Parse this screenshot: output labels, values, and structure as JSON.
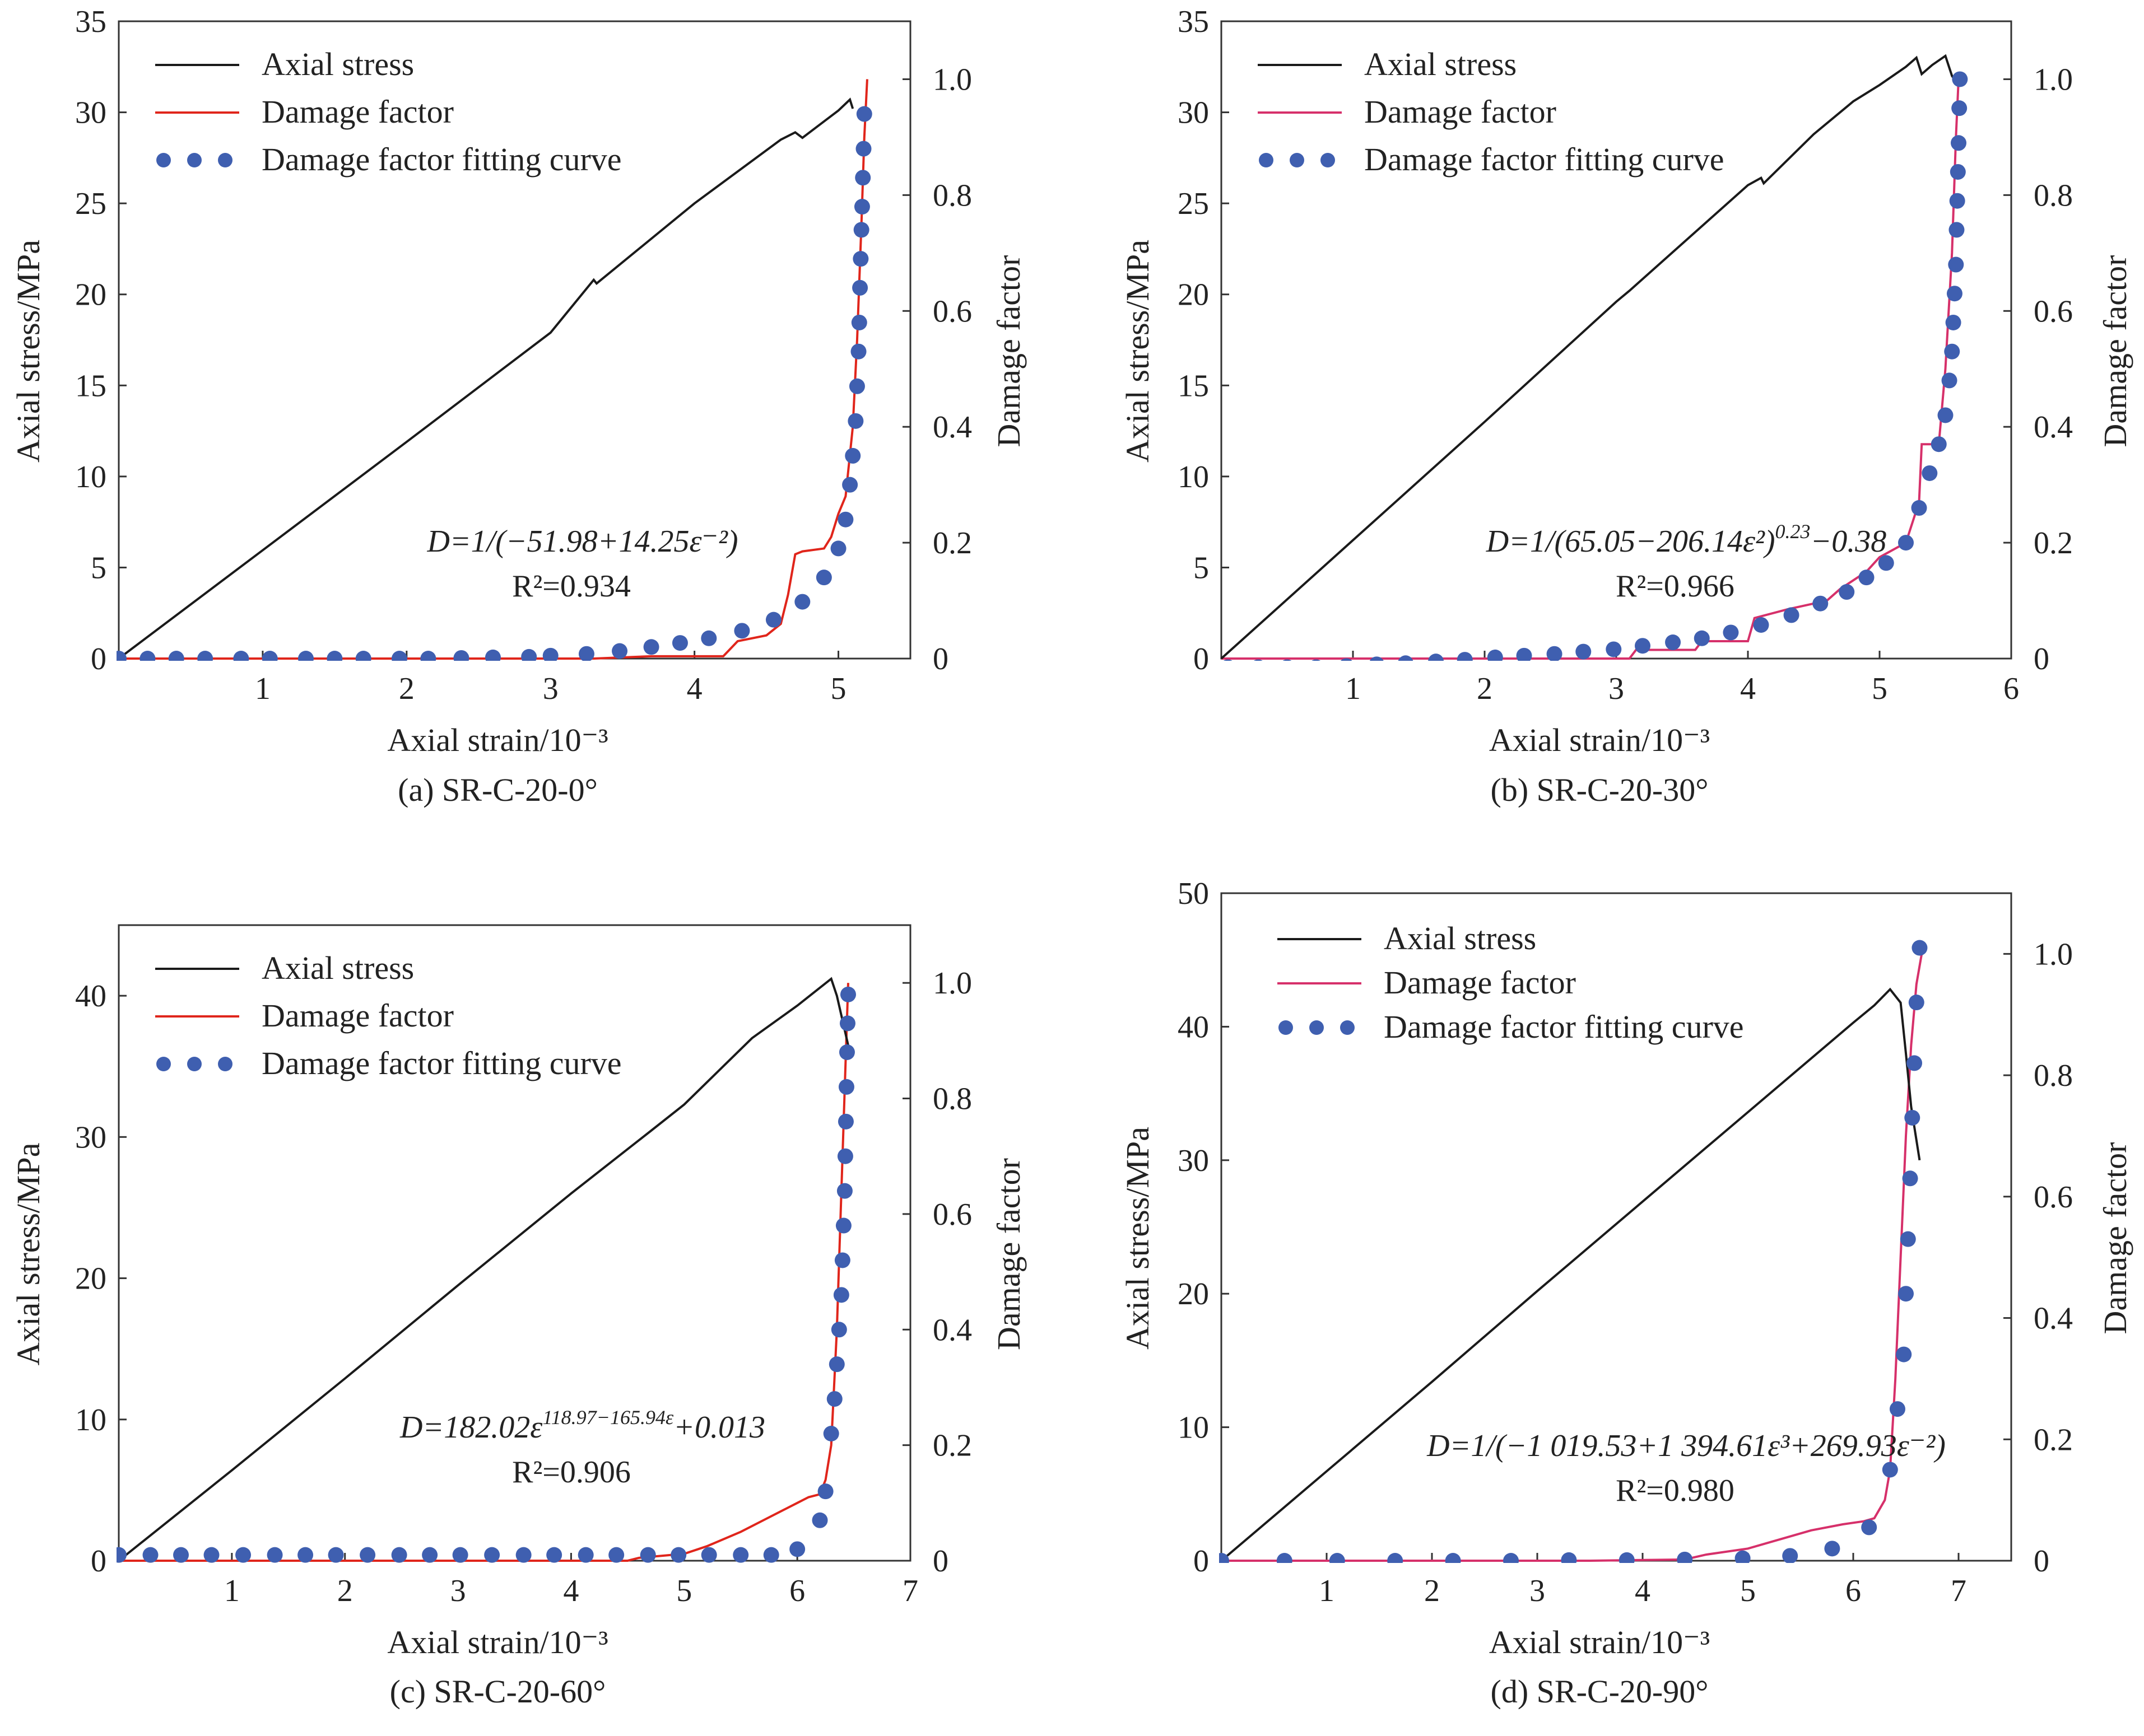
{
  "colors": {
    "axial_stress": "#1a1a1a",
    "damage_factor_red": "#e0251b",
    "damage_factor_pink": "#d6306a",
    "fitting_points": "#3f5fb0",
    "axes": "#333333"
  },
  "chart_data": [
    {
      "id": "a",
      "type": "line",
      "caption": "(a) SR-C-20-0°",
      "xlabel": "Axial strain/10⁻³",
      "ylabel_left": "Axial stress/MPa",
      "ylabel_right": "Damage factor",
      "xlim": [
        0,
        5.5
      ],
      "ylim_left": [
        0,
        35
      ],
      "ylim_right": [
        0,
        1.1
      ],
      "x_ticks": [
        "1",
        "2",
        "3",
        "4",
        "5"
      ],
      "x_tick_values": [
        1,
        2,
        3,
        4,
        5
      ],
      "y_left_ticks": [
        "0",
        "5",
        "10",
        "15",
        "20",
        "25",
        "30",
        "35"
      ],
      "y_left_tick_values": [
        0,
        5,
        10,
        15,
        20,
        25,
        30,
        35
      ],
      "y_right_ticks": [
        "0",
        "0.2",
        "0.4",
        "0.6",
        "0.8",
        "1.0"
      ],
      "y_right_tick_values": [
        0,
        0.2,
        0.4,
        0.6,
        0.8,
        1.0
      ],
      "legend": [
        "Axial stress",
        "Damage factor",
        "Damage factor fitting curve"
      ],
      "legend_position": "top-left",
      "equation": "D=1/(−51.98+14.25ε⁻²)",
      "r2": "R²=0.934",
      "damage_color_key": "damage_factor_red",
      "stress": {
        "x": [
          0,
          1,
          2,
          3,
          3.3,
          3.32,
          4,
          4.6,
          4.7,
          4.75,
          4.9,
          5.0,
          5.08,
          5.1
        ],
        "y": [
          0,
          5.95,
          11.9,
          17.9,
          20.8,
          20.6,
          25.0,
          28.5,
          28.9,
          28.6,
          29.5,
          30.1,
          30.7,
          30.2
        ]
      },
      "damage": {
        "x": [
          0,
          3.3,
          3.7,
          4.2,
          4.3,
          4.5,
          4.6,
          4.65,
          4.7,
          4.75,
          4.9,
          4.95,
          5.0,
          5.05,
          5.1,
          5.13,
          5.16,
          5.18,
          5.2
        ],
        "y": [
          0,
          0,
          0.004,
          0.004,
          0.03,
          0.04,
          0.06,
          0.11,
          0.18,
          0.185,
          0.19,
          0.21,
          0.25,
          0.28,
          0.4,
          0.55,
          0.75,
          0.9,
          1.0
        ]
      },
      "fit": {
        "x": [
          0,
          0.2,
          0.4,
          0.6,
          0.85,
          1.05,
          1.3,
          1.5,
          1.7,
          1.95,
          2.15,
          2.38,
          2.6,
          2.85,
          3.0,
          3.25,
          3.48,
          3.7,
          3.9,
          4.1,
          4.33,
          4.55,
          4.75,
          4.9,
          5.0,
          5.05,
          5.08,
          5.1,
          5.12,
          5.13,
          5.14,
          5.145,
          5.15,
          5.155,
          5.16,
          5.165,
          5.17,
          5.175,
          5.18
        ],
        "y": [
          0,
          0,
          0,
          0,
          0,
          0,
          0,
          0,
          0,
          0,
          0,
          0.001,
          0.002,
          0.003,
          0.005,
          0.008,
          0.013,
          0.02,
          0.027,
          0.035,
          0.048,
          0.067,
          0.098,
          0.14,
          0.19,
          0.24,
          0.3,
          0.35,
          0.41,
          0.47,
          0.53,
          0.58,
          0.64,
          0.69,
          0.74,
          0.78,
          0.83,
          0.88,
          0.94
        ]
      }
    },
    {
      "id": "b",
      "type": "line",
      "caption": "(b) SR-C-20-30°",
      "xlabel": "Axial strain/10⁻³",
      "ylabel_left": "Axial stress/MPa",
      "ylabel_right": "Damage factor",
      "xlim": [
        0,
        6
      ],
      "ylim_left": [
        0,
        35
      ],
      "ylim_right": [
        0,
        1.1
      ],
      "x_ticks": [
        "1",
        "2",
        "3",
        "4",
        "5",
        "6"
      ],
      "x_tick_values": [
        1,
        2,
        3,
        4,
        5,
        6
      ],
      "y_left_ticks": [
        "0",
        "5",
        "10",
        "15",
        "20",
        "25",
        "30",
        "35"
      ],
      "y_left_tick_values": [
        0,
        5,
        10,
        15,
        20,
        25,
        30,
        35
      ],
      "y_right_ticks": [
        "0",
        "0.2",
        "0.4",
        "0.6",
        "0.8",
        "1.0"
      ],
      "y_right_tick_values": [
        0,
        0.2,
        0.4,
        0.6,
        0.8,
        1.0
      ],
      "legend": [
        "Axial stress",
        "Damage factor",
        "Damage factor fitting curve"
      ],
      "legend_position": "top-left",
      "equation": "D=1/(65.05−206.14ε²)^0.23−0.38",
      "r2": "R²=0.966",
      "damage_color_key": "damage_factor_pink",
      "stress": {
        "x": [
          0,
          1,
          2,
          3,
          3.1,
          4.0,
          4.1,
          4.12,
          4.5,
          4.8,
          5.0,
          5.2,
          5.28,
          5.32,
          5.4,
          5.5,
          5.55,
          5.6
        ],
        "y": [
          0,
          6.5,
          13.0,
          19.6,
          20.2,
          26.0,
          26.4,
          26.1,
          28.8,
          30.6,
          31.5,
          32.5,
          33.0,
          32.1,
          32.6,
          33.1,
          32.0,
          31.5
        ]
      },
      "damage": {
        "x": [
          0,
          3.1,
          3.15,
          3.6,
          3.65,
          4.0,
          4.05,
          4.3,
          4.4,
          4.6,
          4.7,
          4.9,
          5.0,
          5.2,
          5.3,
          5.32,
          5.45,
          5.5,
          5.55,
          5.58,
          5.6
        ],
        "y": [
          0,
          0,
          0.015,
          0.015,
          0.03,
          0.03,
          0.07,
          0.085,
          0.09,
          0.1,
          0.12,
          0.15,
          0.175,
          0.2,
          0.27,
          0.37,
          0.37,
          0.5,
          0.7,
          0.9,
          1.0
        ]
      },
      "fit": {
        "x": [
          0.05,
          0.28,
          0.5,
          0.72,
          0.95,
          1.18,
          1.4,
          1.63,
          1.85,
          2.08,
          2.3,
          2.53,
          2.75,
          2.98,
          3.2,
          3.43,
          3.65,
          3.87,
          4.1,
          4.33,
          4.55,
          4.75,
          4.9,
          5.05,
          5.2,
          5.3,
          5.38,
          5.45,
          5.5,
          5.53,
          5.55,
          5.56,
          5.57,
          5.58,
          5.585,
          5.59,
          5.595,
          5.6,
          5.605,
          5.61
        ],
        "y": [
          -0.015,
          -0.015,
          -0.015,
          -0.015,
          -0.013,
          -0.01,
          -0.008,
          -0.005,
          -0.002,
          0.002,
          0.005,
          0.008,
          0.012,
          0.016,
          0.022,
          0.028,
          0.035,
          0.045,
          0.058,
          0.075,
          0.095,
          0.115,
          0.14,
          0.165,
          0.2,
          0.26,
          0.32,
          0.37,
          0.42,
          0.48,
          0.53,
          0.58,
          0.63,
          0.68,
          0.74,
          0.79,
          0.84,
          0.89,
          0.95,
          1.0
        ]
      }
    },
    {
      "id": "c",
      "type": "line",
      "caption": "(c) SR-C-20-60°",
      "xlabel": "Axial strain/10⁻³",
      "ylabel_left": "Axial stress/MPa",
      "ylabel_right": "Damage factor",
      "xlim": [
        0,
        7
      ],
      "ylim_left": [
        0,
        45
      ],
      "ylim_right": [
        0,
        1.1
      ],
      "x_ticks": [
        "1",
        "2",
        "3",
        "4",
        "5",
        "6",
        "7"
      ],
      "x_tick_values": [
        1,
        2,
        3,
        4,
        5,
        6,
        7
      ],
      "y_left_ticks": [
        "0",
        "10",
        "20",
        "30",
        "40"
      ],
      "y_left_tick_values": [
        0,
        10,
        20,
        30,
        40
      ],
      "y_right_ticks": [
        "0",
        "0.2",
        "0.4",
        "0.6",
        "0.8",
        "1.0"
      ],
      "y_right_tick_values": [
        0,
        0.2,
        0.4,
        0.6,
        0.8,
        1.0
      ],
      "legend": [
        "Axial stress",
        "Damage factor",
        "Damage factor fitting curve"
      ],
      "legend_position": "top-left",
      "equation": "D=182.02ε^(118.97−165.94ε)+0.013",
      "r2": "R²=0.906",
      "damage_color_key": "damage_factor_red",
      "stress": {
        "x": [
          0,
          1,
          2,
          3,
          4,
          4.7,
          5.0,
          5.6,
          6.0,
          6.3,
          6.35,
          6.45
        ],
        "y": [
          0,
          6.4,
          12.9,
          19.5,
          26.0,
          30.4,
          32.3,
          37.0,
          39.3,
          41.2,
          40.0,
          36.5
        ]
      },
      "damage": {
        "x": [
          0,
          4.5,
          4.6,
          5.0,
          5.2,
          5.5,
          5.7,
          5.9,
          6.0,
          6.1,
          6.2,
          6.25,
          6.3,
          6.35,
          6.4,
          6.45
        ],
        "y": [
          0,
          0,
          0.005,
          0.012,
          0.025,
          0.05,
          0.07,
          0.09,
          0.1,
          0.11,
          0.115,
          0.14,
          0.2,
          0.4,
          0.7,
          1.0
        ]
      },
      "fit": {
        "x": [
          0,
          0.28,
          0.55,
          0.82,
          1.1,
          1.38,
          1.65,
          1.92,
          2.2,
          2.48,
          2.75,
          3.02,
          3.3,
          3.58,
          3.85,
          4.13,
          4.4,
          4.68,
          4.95,
          5.22,
          5.5,
          5.77,
          6.0,
          6.2,
          6.25,
          6.3,
          6.33,
          6.35,
          6.37,
          6.39,
          6.4,
          6.41,
          6.42,
          6.425,
          6.43,
          6.435,
          6.44,
          6.445,
          6.45
        ],
        "y": [
          0.01,
          0.01,
          0.01,
          0.01,
          0.01,
          0.01,
          0.01,
          0.01,
          0.01,
          0.01,
          0.01,
          0.01,
          0.01,
          0.01,
          0.01,
          0.01,
          0.01,
          0.01,
          0.01,
          0.01,
          0.01,
          0.01,
          0.02,
          0.07,
          0.12,
          0.22,
          0.28,
          0.34,
          0.4,
          0.46,
          0.52,
          0.58,
          0.64,
          0.7,
          0.76,
          0.82,
          0.88,
          0.93,
          0.98
        ]
      }
    },
    {
      "id": "d",
      "type": "line",
      "caption": "(d) SR-C-20-90°",
      "xlabel": "Axial strain/10⁻³",
      "ylabel_left": "Axial stress/MPa",
      "ylabel_right": "Damage factor",
      "xlim": [
        0,
        7.5
      ],
      "ylim_left": [
        0,
        50
      ],
      "ylim_right": [
        0,
        1.1
      ],
      "x_ticks": [
        "1",
        "2",
        "3",
        "4",
        "5",
        "6",
        "7"
      ],
      "x_tick_values": [
        1,
        2,
        3,
        4,
        5,
        6,
        7
      ],
      "y_left_ticks": [
        "0",
        "10",
        "20",
        "30",
        "40",
        "50"
      ],
      "y_left_tick_values": [
        0,
        10,
        20,
        30,
        40,
        50
      ],
      "y_right_ticks": [
        "0",
        "0.2",
        "0.4",
        "0.6",
        "0.8",
        "1.0"
      ],
      "y_right_tick_values": [
        0,
        0.2,
        0.4,
        0.6,
        0.8,
        1.0
      ],
      "legend": [
        "Axial stress",
        "Damage factor",
        "Damage factor fitting curve"
      ],
      "legend_position": "top-left",
      "equation": "D=1/(−1 019.53+1 394.61ε³+269.93ε⁻²)",
      "r2": "R²=0.980",
      "damage_color_key": "damage_factor_pink",
      "stress": {
        "x": [
          0,
          1,
          2,
          3,
          4,
          5,
          6,
          6.2,
          6.35,
          6.45,
          6.5,
          6.55,
          6.6,
          6.62,
          6.63
        ],
        "y": [
          0,
          6.7,
          13.4,
          20.2,
          26.9,
          33.6,
          40.3,
          41.6,
          42.8,
          41.8,
          38.0,
          34.0,
          31.5,
          30.5,
          30.0
        ]
      },
      "damage": {
        "x": [
          0,
          3.5,
          4.4,
          4.6,
          5.0,
          5.3,
          5.6,
          5.9,
          6.1,
          6.2,
          6.3,
          6.35,
          6.4,
          6.45,
          6.5,
          6.55,
          6.6,
          6.65
        ],
        "y": [
          0,
          0,
          0.002,
          0.01,
          0.02,
          0.035,
          0.05,
          0.06,
          0.065,
          0.07,
          0.1,
          0.15,
          0.3,
          0.5,
          0.7,
          0.85,
          0.95,
          1.0
        ]
      },
      "fit": {
        "x": [
          0,
          0.6,
          1.1,
          1.65,
          2.2,
          2.75,
          3.3,
          3.85,
          4.4,
          4.95,
          5.4,
          5.8,
          6.15,
          6.35,
          6.42,
          6.48,
          6.5,
          6.52,
          6.54,
          6.56,
          6.58,
          6.6,
          6.63
        ],
        "y": [
          0,
          0,
          0,
          0,
          0,
          0,
          0.001,
          0.001,
          0.002,
          0.004,
          0.008,
          0.02,
          0.055,
          0.15,
          0.25,
          0.34,
          0.44,
          0.53,
          0.63,
          0.73,
          0.82,
          0.92,
          1.01
        ]
      }
    }
  ]
}
